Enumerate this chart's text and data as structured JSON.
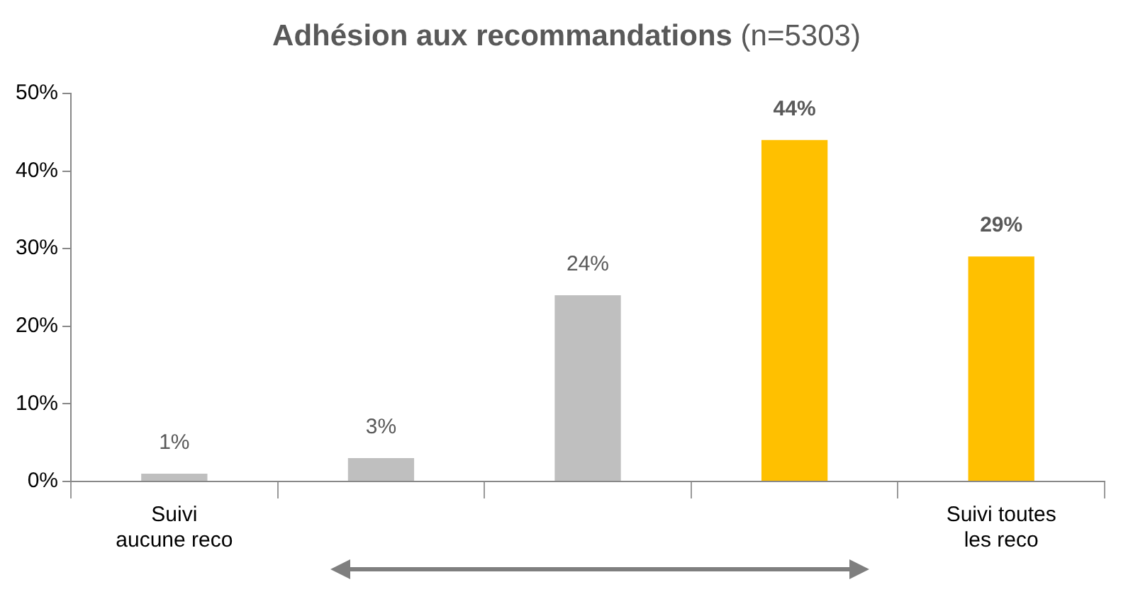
{
  "chart_data": {
    "type": "bar",
    "title": "Adhésion aux recommandations",
    "subtitle": "(n=5303)",
    "categories": [
      "Suivi aucune reco",
      null,
      null,
      null,
      "Suivi toutes les reco"
    ],
    "values": [
      1,
      3,
      24,
      44,
      29
    ],
    "colors": [
      "#bfbfbf",
      "#bfbfbf",
      "#bfbfbf",
      "#ffc000",
      "#ffc000"
    ],
    "ylim": [
      0,
      50
    ],
    "yticks": [
      {
        "value": 0,
        "label": "0%"
      },
      {
        "value": 10,
        "label": "10%"
      },
      {
        "value": 20,
        "label": "20%"
      },
      {
        "value": 30,
        "label": "30%"
      },
      {
        "value": 40,
        "label": "40%"
      },
      {
        "value": 50,
        "label": "50%"
      }
    ],
    "value_labels": [
      "1%",
      "3%",
      "24%",
      "44%",
      "29%"
    ],
    "grid": false,
    "legend": false
  }
}
